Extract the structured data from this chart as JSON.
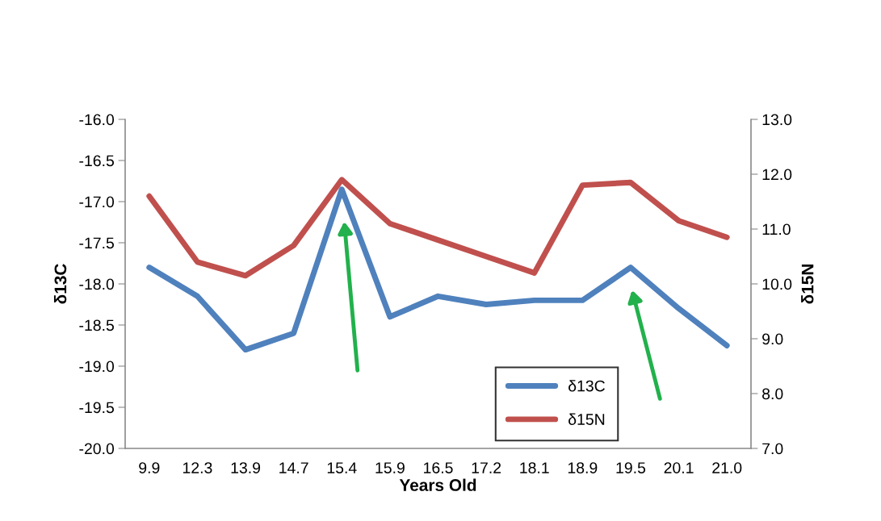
{
  "chart_data": {
    "type": "line",
    "xlabel": "Years Old",
    "ylabel": "δ13C",
    "y2label": "δ15N",
    "categories": [
      "9.9",
      "12.3",
      "13.9",
      "14.7",
      "15.4",
      "15.9",
      "16.5",
      "17.2",
      "18.1",
      "18.9",
      "19.5",
      "20.1",
      "21.0"
    ],
    "series": [
      {
        "name": "δ13C",
        "color": "#4f81bd",
        "values": [
          -17.8,
          -18.15,
          -18.8,
          -18.6,
          -16.85,
          -18.4,
          -18.15,
          -18.25,
          -18.2,
          -18.2,
          -17.8,
          -18.3,
          -18.75
        ]
      },
      {
        "name": "δ15N",
        "color": "#c0504d",
        "axis": "y2",
        "values": [
          11.6,
          10.4,
          10.15,
          10.7,
          11.9,
          11.1,
          10.8,
          10.5,
          10.2,
          11.8,
          11.85,
          11.15,
          10.85
        ]
      }
    ],
    "ylim": [
      -20,
      -16
    ],
    "yticks": [
      {
        "value": -20,
        "label": "-20.0"
      },
      {
        "value": -19.5,
        "label": "-19.5"
      },
      {
        "value": -19,
        "label": "-19.0"
      },
      {
        "value": -18.5,
        "label": "-18.5"
      },
      {
        "value": -18,
        "label": "-18.0"
      },
      {
        "value": -17.5,
        "label": "-17.5"
      },
      {
        "value": -17,
        "label": "-17.0"
      },
      {
        "value": -16.5,
        "label": "-16.5"
      },
      {
        "value": -16,
        "label": "-16.0"
      }
    ],
    "y2lim": [
      7,
      13
    ],
    "y2ticks": [
      {
        "value": 7,
        "label": "7.0"
      },
      {
        "value": 8,
        "label": "8.0"
      },
      {
        "value": 9,
        "label": "9.0"
      },
      {
        "value": 10,
        "label": "10.0"
      },
      {
        "value": 11,
        "label": "11.0"
      },
      {
        "value": 12,
        "label": "12.0"
      },
      {
        "value": 13,
        "label": "13.0"
      }
    ],
    "grid": false,
    "legend": "bottom right",
    "marker": "none",
    "line_style": "solid"
  }
}
